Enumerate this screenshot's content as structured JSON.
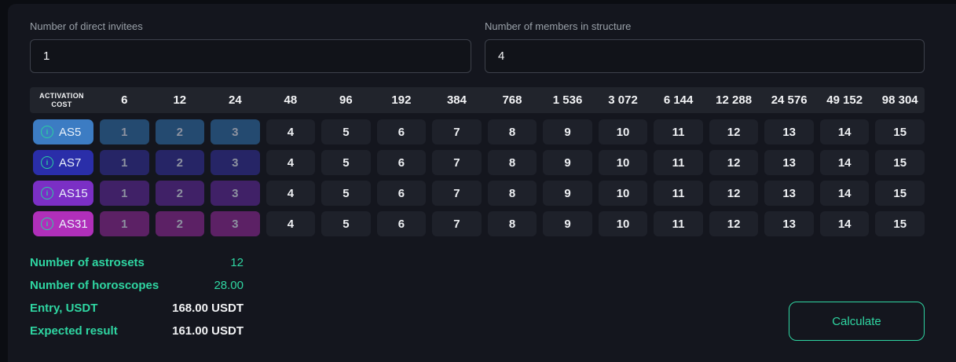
{
  "inputs": [
    {
      "label": "Number of direct invitees",
      "value": "1"
    },
    {
      "label": "Number of members in structure",
      "value": "4"
    }
  ],
  "table": {
    "corner_label": "ACTIVATION COST",
    "columns": [
      "6",
      "12",
      "24",
      "48",
      "96",
      "192",
      "384",
      "768",
      "1 536",
      "3 072",
      "6 144",
      "12 288",
      "24 576",
      "49 152",
      "98 304"
    ],
    "rows": [
      {
        "label": "AS5",
        "icon": "info-icon",
        "chip_color": "#3c7cc3",
        "muted_cell_color": "#244a70",
        "muted_count": 3,
        "cells": [
          "1",
          "2",
          "3",
          "4",
          "5",
          "6",
          "7",
          "8",
          "9",
          "10",
          "11",
          "12",
          "13",
          "14",
          "15"
        ]
      },
      {
        "label": "AS7",
        "icon": "info-icon",
        "chip_color": "#2a2ea9",
        "muted_cell_color": "#262566",
        "muted_count": 3,
        "cells": [
          "1",
          "2",
          "3",
          "4",
          "5",
          "6",
          "7",
          "8",
          "9",
          "10",
          "11",
          "12",
          "13",
          "14",
          "15"
        ]
      },
      {
        "label": "AS15",
        "icon": "info-icon",
        "chip_color": "#7b2fc5",
        "muted_cell_color": "#402167",
        "muted_count": 3,
        "cells": [
          "1",
          "2",
          "3",
          "4",
          "5",
          "6",
          "7",
          "8",
          "9",
          "10",
          "11",
          "12",
          "13",
          "14",
          "15"
        ]
      },
      {
        "label": "AS31",
        "icon": "info-icon",
        "chip_color": "#b02fba",
        "muted_cell_color": "#5c2165",
        "muted_count": 3,
        "cells": [
          "1",
          "2",
          "3",
          "4",
          "5",
          "6",
          "7",
          "8",
          "9",
          "10",
          "11",
          "12",
          "13",
          "14",
          "15"
        ]
      }
    ]
  },
  "summary": [
    {
      "label": "Number of astrosets",
      "value": "12",
      "value_style": "green"
    },
    {
      "label": "Number of horoscopes",
      "value": "28.00",
      "value_style": "green"
    },
    {
      "label": "Entry, USDT",
      "value": "168.00 USDT",
      "value_style": "white"
    },
    {
      "label": "Expected result",
      "value": "161.00 USDT",
      "value_style": "white"
    }
  ],
  "actions": {
    "calculate_label": "Calculate"
  },
  "colors": {
    "background": "#14161e",
    "page_edge": "#0b0d12",
    "accent_green": "#2fd6a2",
    "header_bar_bg": "#21242c",
    "cell_bg": "#1e212a",
    "cell_text": "#eef0f3",
    "muted_cell_text": "#8d92a0",
    "input_border": "#3d414b",
    "field_label_text": "#99a0a8",
    "info_icon_color": "#2bd1a1",
    "value_white": "#f2f3f5"
  }
}
